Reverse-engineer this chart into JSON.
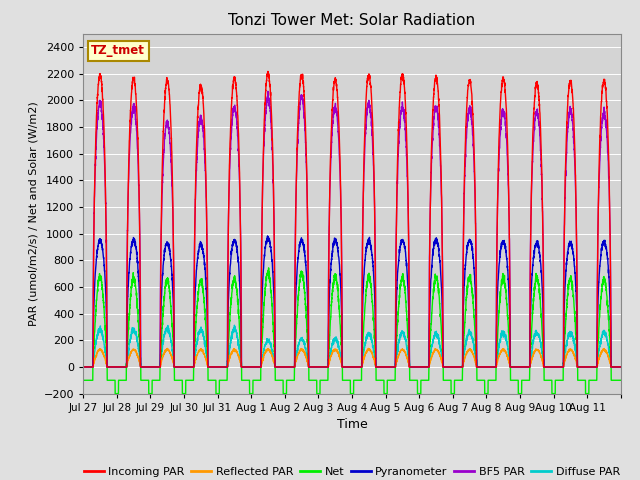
{
  "title": "Tonzi Tower Met: Solar Radiation",
  "xlabel": "Time",
  "ylabel": "PAR (umol/m2/s) / Net and Solar (W/m2)",
  "ylim": [
    -200,
    2500
  ],
  "yticks": [
    -200,
    0,
    200,
    400,
    600,
    800,
    1000,
    1200,
    1400,
    1600,
    1800,
    2000,
    2200,
    2400
  ],
  "background_color": "#e0e0e0",
  "plot_bg_color": "#d4d4d4",
  "annotation_text": "TZ_tmet",
  "annotation_bg": "#ffffcc",
  "annotation_border": "#aa8800",
  "legend_entries": [
    "Incoming PAR",
    "Reflected PAR",
    "Net",
    "Pyranometer",
    "BF5 PAR",
    "Diffuse PAR"
  ],
  "line_colors": [
    "#ff0000",
    "#ff9900",
    "#00ee00",
    "#0000cc",
    "#9900cc",
    "#00cccc"
  ],
  "n_days": 16,
  "day_labels": [
    "Jul 27",
    "Jul 28",
    "Jul 29",
    "Jul 30",
    "Jul 31",
    "Aug 1",
    "Aug 2",
    "Aug 3",
    "Aug 4",
    "Aug 5",
    "Aug 6",
    "Aug 7",
    "Aug 8",
    "Aug 9",
    "Aug 10",
    "Aug 11"
  ],
  "incoming_peaks": [
    2190,
    2160,
    2150,
    2110,
    2170,
    2200,
    2190,
    2150,
    2190,
    2190,
    2170,
    2150,
    2160,
    2130,
    2140,
    2150
  ],
  "pyranometer_peaks": [
    950,
    950,
    930,
    920,
    950,
    970,
    950,
    950,
    950,
    950,
    950,
    950,
    940,
    930,
    930,
    940
  ],
  "bf5_peaks": [
    1980,
    1950,
    1830,
    1870,
    1950,
    2020,
    2020,
    1950,
    1980,
    1950,
    1950,
    1930,
    1920,
    1920,
    1920,
    1900
  ],
  "net_peaks": [
    680,
    670,
    650,
    650,
    660,
    710,
    710,
    680,
    680,
    670,
    670,
    670,
    670,
    670,
    660,
    660
  ],
  "net_negative": [
    -100,
    -100,
    -100,
    -100,
    -100,
    -100,
    -100,
    -100,
    -100,
    -100,
    -100,
    -100,
    -100,
    -100,
    -100,
    -100
  ],
  "reflected_peaks": [
    130,
    130,
    130,
    130,
    130,
    130,
    130,
    130,
    130,
    130,
    130,
    130,
    130,
    130,
    130,
    130
  ],
  "diffuse_peaks": [
    280,
    280,
    290,
    280,
    280,
    200,
    210,
    210,
    250,
    260,
    250,
    260,
    260,
    260,
    260,
    260
  ],
  "samples_per_day": 288
}
